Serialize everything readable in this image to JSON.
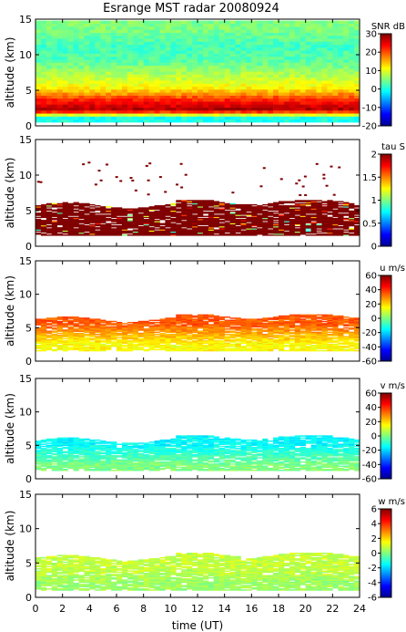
{
  "figure": {
    "title": "Esrange MST radar 20080924",
    "xlabel": "time (UT)"
  },
  "chart_data": [
    {
      "type": "heatmap",
      "quantity": "snr",
      "ylabel": "altitude (km)",
      "colorbar_title": "SNR dB",
      "colorbar_ticks": [
        30,
        20,
        10,
        0,
        -10,
        -20
      ],
      "clim": [
        -20,
        30
      ],
      "xlim": [
        0,
        24
      ],
      "ylim": [
        0,
        15
      ],
      "xticks": [
        0,
        2,
        4,
        6,
        8,
        10,
        12,
        14,
        16,
        18,
        20,
        22,
        24
      ],
      "yticks": [
        0,
        5,
        10,
        15
      ],
      "colormap": "jet",
      "coverage_altitude_range_km": [
        0.5,
        14.8
      ],
      "layers": [
        {
          "altitude_km": 13.3,
          "value": 5
        },
        {
          "altitude_km": 11.0,
          "value": 2
        },
        {
          "altitude_km": 9.0,
          "value": 3
        },
        {
          "altitude_km": 5.0,
          "value": 12
        },
        {
          "altitude_km": 3.5,
          "value": 22
        },
        {
          "altitude_km": 2.0,
          "value": 28
        },
        {
          "altitude_km": 1.0,
          "value": 0
        }
      ]
    },
    {
      "type": "heatmap",
      "quantity": "tau",
      "ylabel": "altitude (km)",
      "colorbar_title": "tau S",
      "colorbar_ticks": [
        2,
        1.5,
        1,
        0.5,
        0
      ],
      "clim": [
        0,
        2
      ],
      "xlim": [
        0,
        24
      ],
      "ylim": [
        0,
        15
      ],
      "xticks": [
        0,
        2,
        4,
        6,
        8,
        10,
        12,
        14,
        16,
        18,
        20,
        22,
        24
      ],
      "yticks": [
        0,
        5,
        10,
        15
      ],
      "colormap": "jet",
      "dominant_value": 2.0,
      "coverage_altitude_range_km": [
        1.5,
        6.5
      ],
      "sparse_points_altitude_range_km": [
        7,
        12
      ]
    },
    {
      "type": "heatmap",
      "quantity": "u",
      "ylabel": "altitude (km)",
      "colorbar_title": "u m/s",
      "colorbar_ticks": [
        60,
        40,
        20,
        0,
        -20,
        -40,
        -60
      ],
      "clim": [
        -60,
        60
      ],
      "xlim": [
        0,
        24
      ],
      "ylim": [
        0,
        15
      ],
      "xticks": [
        0,
        2,
        4,
        6,
        8,
        10,
        12,
        14,
        16,
        18,
        20,
        22,
        24
      ],
      "yticks": [
        0,
        5,
        10,
        15
      ],
      "colormap": "jet",
      "coverage_altitude_range_km": [
        1.5,
        7
      ],
      "layers": [
        {
          "altitude_km": 5.5,
          "value": 35
        },
        {
          "altitude_km": 4.0,
          "value": 25
        },
        {
          "altitude_km": 2.5,
          "value": 15
        }
      ]
    },
    {
      "type": "heatmap",
      "quantity": "v",
      "ylabel": "altitude (km)",
      "colorbar_title": "v m/s",
      "colorbar_ticks": [
        60,
        40,
        20,
        0,
        -20,
        -40,
        -60
      ],
      "clim": [
        -60,
        60
      ],
      "xlim": [
        0,
        24
      ],
      "ylim": [
        0,
        15
      ],
      "xticks": [
        0,
        2,
        4,
        6,
        8,
        10,
        12,
        14,
        16,
        18,
        20,
        22,
        24
      ],
      "yticks": [
        0,
        5,
        10,
        15
      ],
      "colormap": "jet",
      "coverage_altitude_range_km": [
        1.2,
        6.5
      ],
      "layers": [
        {
          "altitude_km": 5.0,
          "value": -15
        },
        {
          "altitude_km": 3.5,
          "value": -8
        },
        {
          "altitude_km": 2.0,
          "value": 0
        }
      ]
    },
    {
      "type": "heatmap",
      "quantity": "w",
      "ylabel": "altitude (km)",
      "colorbar_title": "w m/s",
      "colorbar_ticks": [
        6,
        4,
        2,
        0,
        -2,
        -4,
        -6
      ],
      "clim": [
        -6,
        6
      ],
      "xlim": [
        0,
        24
      ],
      "ylim": [
        0,
        15
      ],
      "xticks": [
        0,
        2,
        4,
        6,
        8,
        10,
        12,
        14,
        16,
        18,
        20,
        22,
        24
      ],
      "yticks": [
        0,
        5,
        10,
        15
      ],
      "colormap": "jet",
      "coverage_altitude_range_km": [
        1.0,
        6.5
      ],
      "layers": [
        {
          "altitude_km": 4.0,
          "value": 0.8
        },
        {
          "altitude_km": 2.0,
          "value": 0.3
        }
      ]
    }
  ]
}
